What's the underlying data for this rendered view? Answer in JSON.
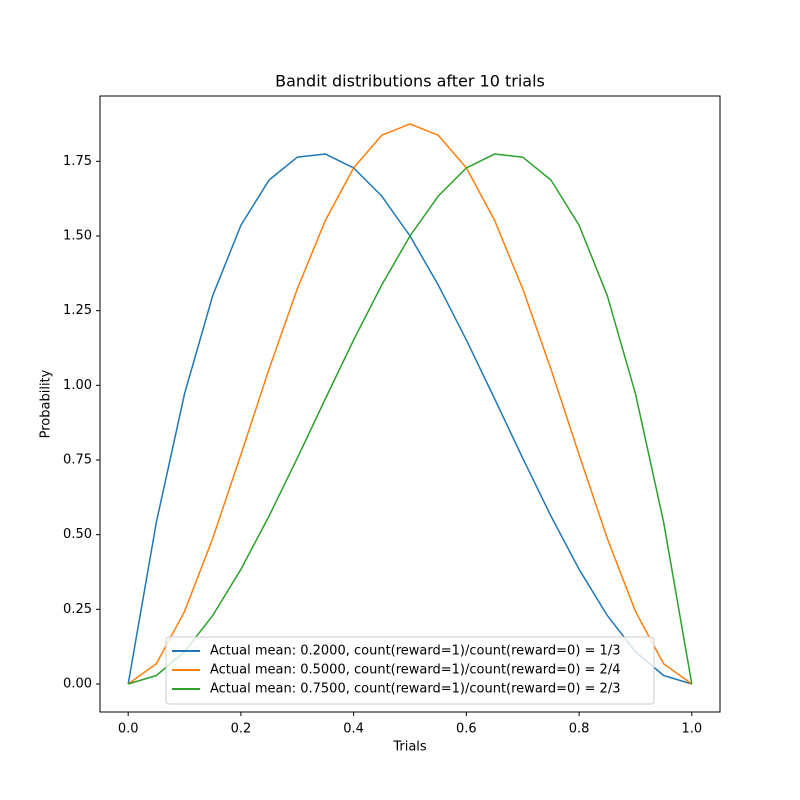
{
  "chart_data": {
    "type": "line",
    "title": "Bandit distributions after 10 trials",
    "x_label": "Trials",
    "y_label": "Probability",
    "x": [
      0,
      0.05,
      0.1,
      0.15,
      0.2,
      0.25,
      0.3,
      0.35,
      0.4,
      0.45,
      0.5,
      0.55,
      0.6,
      0.65,
      0.7,
      0.75,
      0.8,
      0.85,
      0.9,
      0.95,
      1.0
    ],
    "series": [
      {
        "name": "Actual mean: 0.2000, count(reward=1)/count(reward=0) = 1/3",
        "color": "#1f77b4",
        "values": [
          0,
          0.5415,
          0.972,
          1.3005,
          1.536,
          1.6875,
          1.764,
          1.7745,
          1.728,
          1.6335,
          1.5,
          1.3365,
          1.152,
          0.9555,
          0.756,
          0.5625,
          0.384,
          0.2295,
          0.108,
          0.0285,
          0
        ]
      },
      {
        "name": "Actual mean: 0.5000, count(reward=1)/count(reward=0) = 2/4",
        "color": "#ff7f0e",
        "values": [
          0,
          0.0677,
          0.243,
          0.4877,
          0.768,
          1.0547,
          1.323,
          1.5527,
          1.728,
          1.8377,
          1.875,
          1.8377,
          1.728,
          1.5527,
          1.323,
          1.0547,
          0.768,
          0.4877,
          0.243,
          0.0677,
          0
        ]
      },
      {
        "name": "Actual mean: 0.7500, count(reward=1)/count(reward=0) = 2/3",
        "color": "#2ca02c",
        "values": [
          0,
          0.0285,
          0.108,
          0.2295,
          0.384,
          0.5625,
          0.756,
          0.9555,
          1.152,
          1.3365,
          1.5,
          1.6335,
          1.728,
          1.7745,
          1.764,
          1.6875,
          1.536,
          1.3005,
          0.972,
          0.5415,
          0
        ]
      }
    ],
    "xlim": [
      -0.05,
      1.05
    ],
    "ylim": [
      -0.09375,
      1.96875
    ],
    "xticks": [
      {
        "value": 0,
        "label": "0.0"
      },
      {
        "value": 0.2,
        "label": "0.2"
      },
      {
        "value": 0.4,
        "label": "0.4"
      },
      {
        "value": 0.6,
        "label": "0.6"
      },
      {
        "value": 0.8,
        "label": "0.8"
      },
      {
        "value": 1,
        "label": "1.0"
      }
    ],
    "yticks": [
      {
        "value": 0,
        "label": "0.00"
      },
      {
        "value": 0.25,
        "label": "0.25"
      },
      {
        "value": 0.5,
        "label": "0.50"
      },
      {
        "value": 0.75,
        "label": "0.75"
      },
      {
        "value": 1,
        "label": "1.00"
      },
      {
        "value": 1.25,
        "label": "1.25"
      },
      {
        "value": 1.5,
        "label": "1.50"
      },
      {
        "value": 1.75,
        "label": "1.75"
      }
    ],
    "legend": "lower center",
    "grid": false
  }
}
